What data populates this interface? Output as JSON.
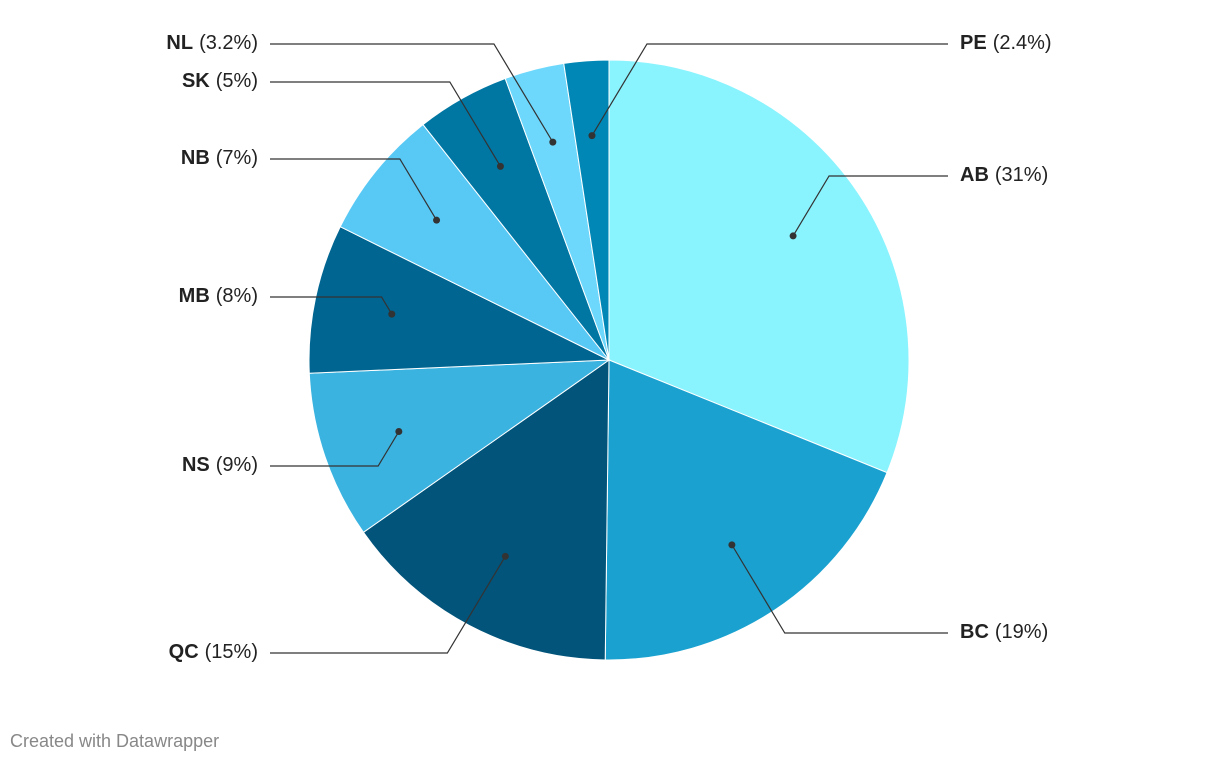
{
  "chart_data": {
    "type": "pie",
    "categories": [
      "AB",
      "BC",
      "QC",
      "NS",
      "MB",
      "NB",
      "SK",
      "NL",
      "PE"
    ],
    "values": [
      31,
      19,
      15,
      9,
      8,
      7,
      5,
      3.2,
      2.4
    ],
    "value_labels": [
      "(31%)",
      "(19%)",
      "(15%)",
      "(9%)",
      "(8%)",
      "(7%)",
      "(5%)",
      "(3.2%)",
      "(2.4%)"
    ],
    "colors": [
      "#89f3fe",
      "#1aa1cf",
      "#02547a",
      "#3bb3e0",
      "#006590",
      "#58c8f5",
      "#0076a3",
      "#6dd8fc",
      "#0087b5"
    ],
    "credit": "Created with Datawrapper"
  }
}
